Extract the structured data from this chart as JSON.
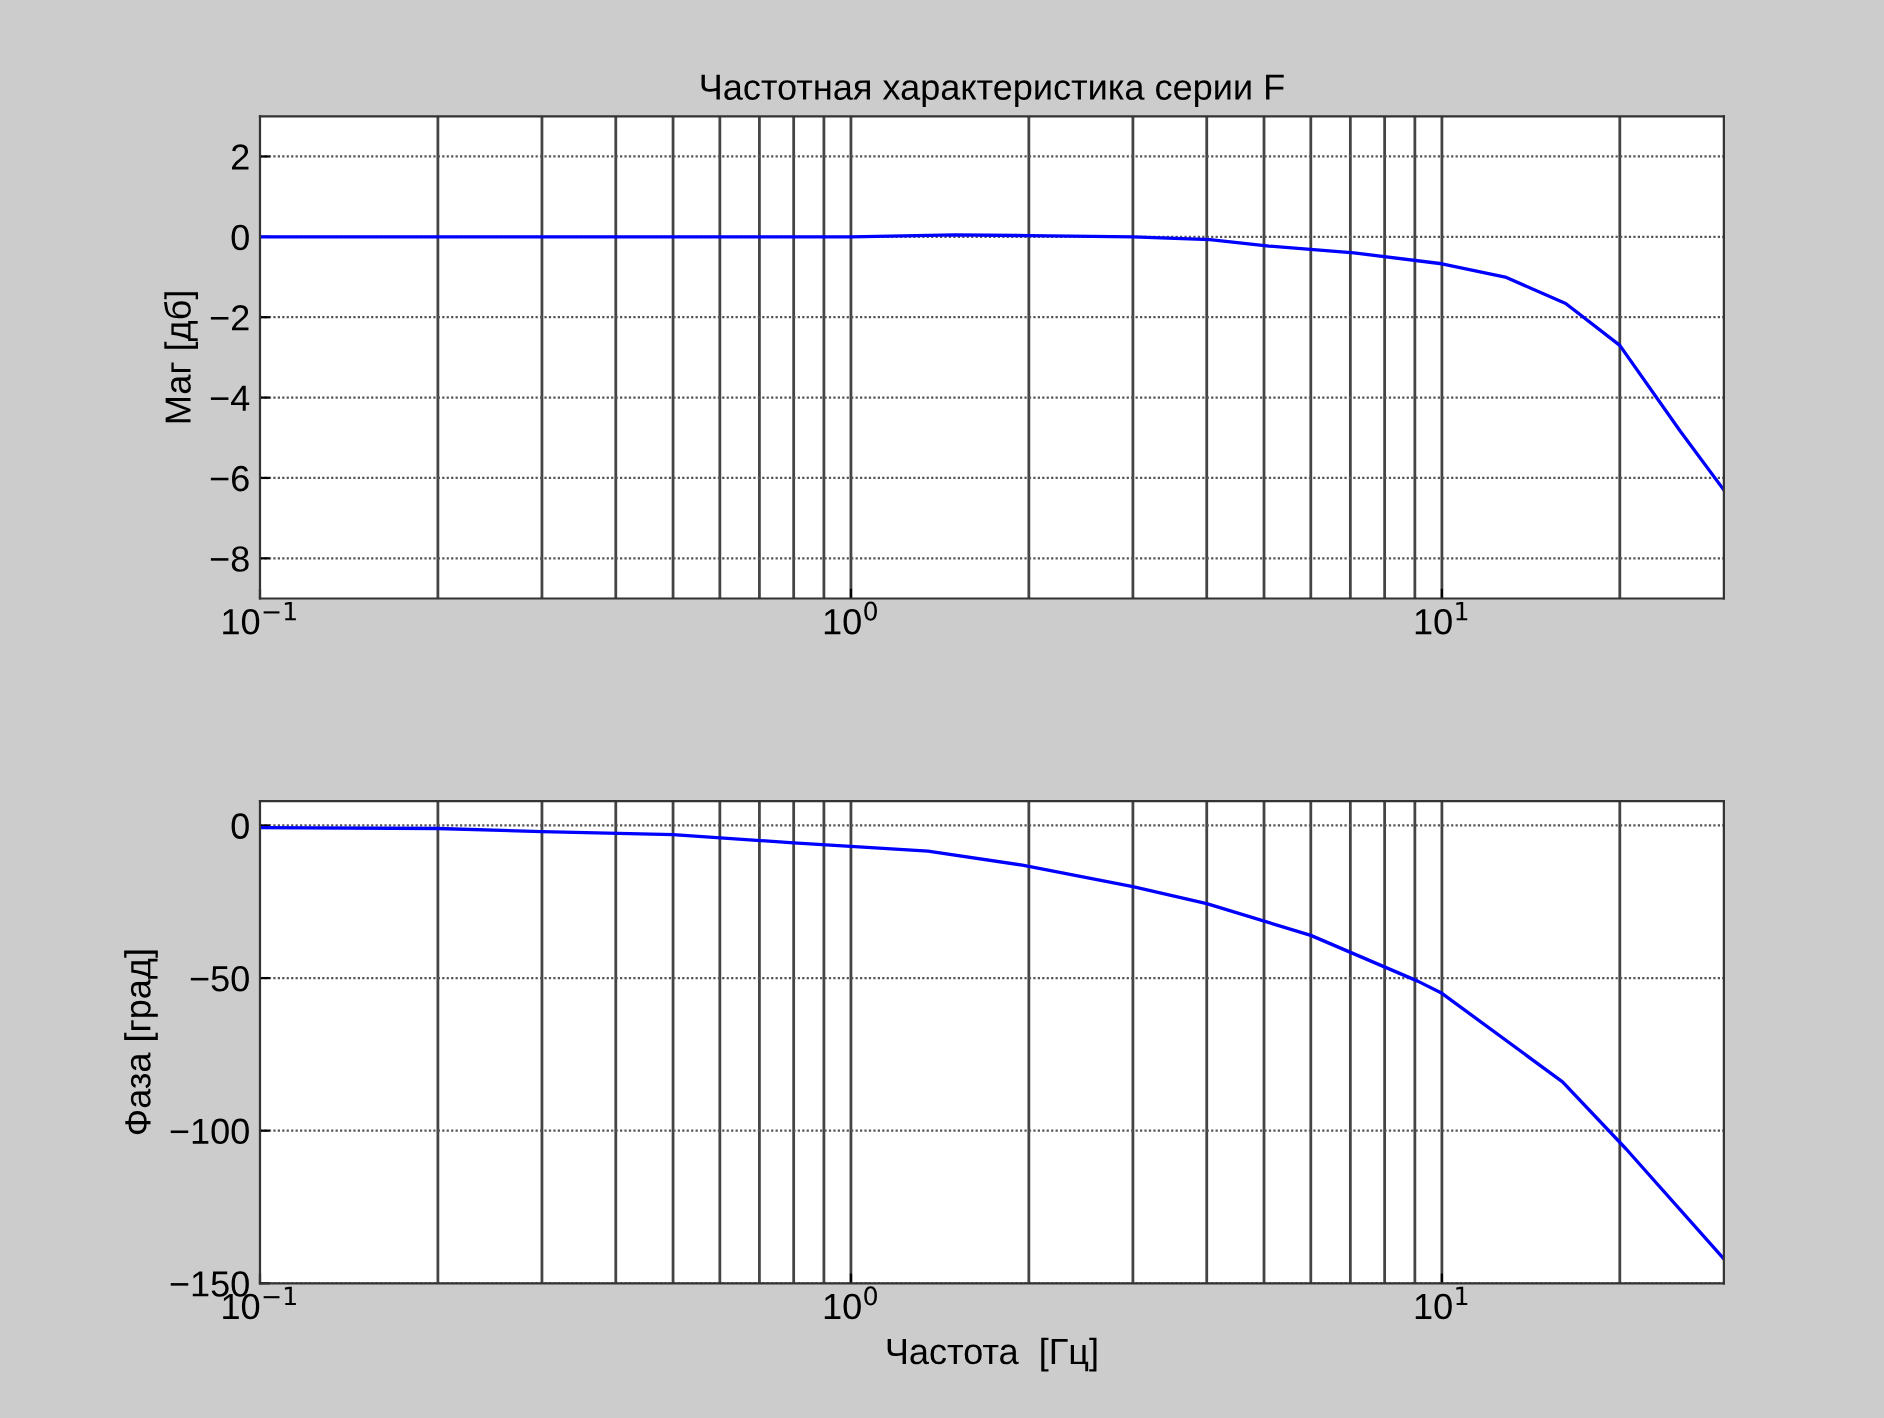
{
  "chart_data": [
    {
      "type": "line",
      "title": "Частотная характеристика серии F",
      "ylabel": "Маг [дб]",
      "log": "x",
      "grid": true,
      "x": [
        0.1,
        0.5,
        1,
        1.5,
        2,
        3,
        4.05,
        5.1,
        7.1,
        10,
        12.8,
        16.2,
        20,
        25.3,
        30
      ],
      "series": [
        {
          "color": "#0000ff",
          "values": [
            0,
            0,
            0,
            0.05,
            0.03,
            0,
            -0.07,
            -0.23,
            -0.4,
            -0.67,
            -1.0,
            -1.66,
            -2.7,
            -4.83,
            -6.3
          ]
        }
      ],
      "xlim": [
        0.1,
        30
      ],
      "xticks": [
        {
          "value": 0.1,
          "label": "10$^{−1}$"
        },
        {
          "value": 1,
          "label": "10$^{0}$"
        },
        {
          "value": 10,
          "label": "10$^{1}$"
        }
      ],
      "ylim": [
        -9,
        3
      ],
      "yticks": [
        -8,
        -6,
        -4,
        -2,
        0,
        2
      ]
    },
    {
      "type": "line",
      "xlabel": "Частота  [Гц]",
      "ylabel": "Фаза [град]",
      "log": "x",
      "grid": true,
      "x": [
        0.1,
        0.2,
        0.3,
        0.5,
        0.8,
        1.35,
        1.95,
        3.0,
        4.0,
        6.0,
        9.1,
        10,
        16,
        20.5,
        30
      ],
      "series": [
        {
          "color": "#0000ff",
          "values": [
            -0.7,
            -1,
            -2,
            -3,
            -5.7,
            -8.4,
            -13,
            -20,
            -25.6,
            -36,
            -51,
            -55,
            -84,
            -106,
            -142
          ]
        }
      ],
      "xlim": [
        0.1,
        30
      ],
      "xticks": [
        {
          "value": 0.1,
          "label": "10$^{−1}$"
        },
        {
          "value": 1,
          "label": "10$^{0}$"
        },
        {
          "value": 10,
          "label": "10$^{1}$"
        }
      ],
      "ylim": [
        -150,
        8
      ],
      "yticks": [
        -150,
        -100,
        -50,
        0
      ]
    }
  ]
}
